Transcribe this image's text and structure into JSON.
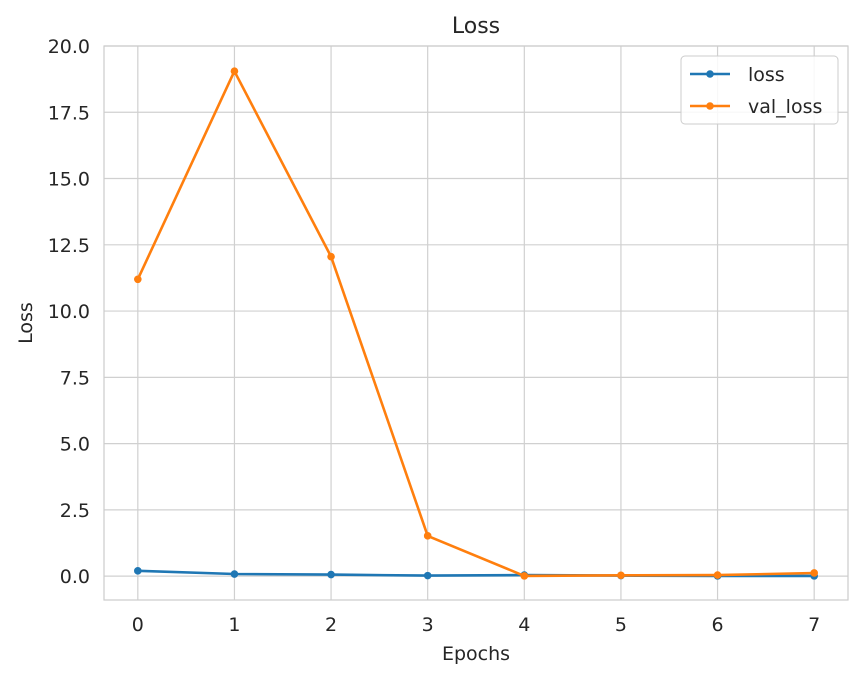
{
  "chart_data": {
    "type": "line",
    "title": "Loss",
    "xlabel": "Epochs",
    "ylabel": "Loss",
    "x": [
      0,
      1,
      2,
      3,
      4,
      5,
      6,
      7
    ],
    "xticks": [
      "0",
      "1",
      "2",
      "3",
      "4",
      "5",
      "6",
      "7"
    ],
    "yticks": [
      "0.0",
      "2.5",
      "5.0",
      "7.5",
      "10.0",
      "12.5",
      "15.0",
      "17.5",
      "20.0"
    ],
    "xlim": [
      -0.35,
      7.35
    ],
    "ylim": [
      -0.9,
      20.0
    ],
    "grid": true,
    "legend_position": "top-right",
    "series": [
      {
        "name": "loss",
        "color": "#1f77b4",
        "marker": "circle",
        "values": [
          0.2,
          0.08,
          0.06,
          0.02,
          0.04,
          0.02,
          0.01,
          0.01
        ]
      },
      {
        "name": "val_loss",
        "color": "#ff7f0e",
        "marker": "circle",
        "values": [
          11.2,
          19.05,
          12.05,
          1.52,
          0.01,
          0.03,
          0.04,
          0.12
        ]
      }
    ]
  }
}
